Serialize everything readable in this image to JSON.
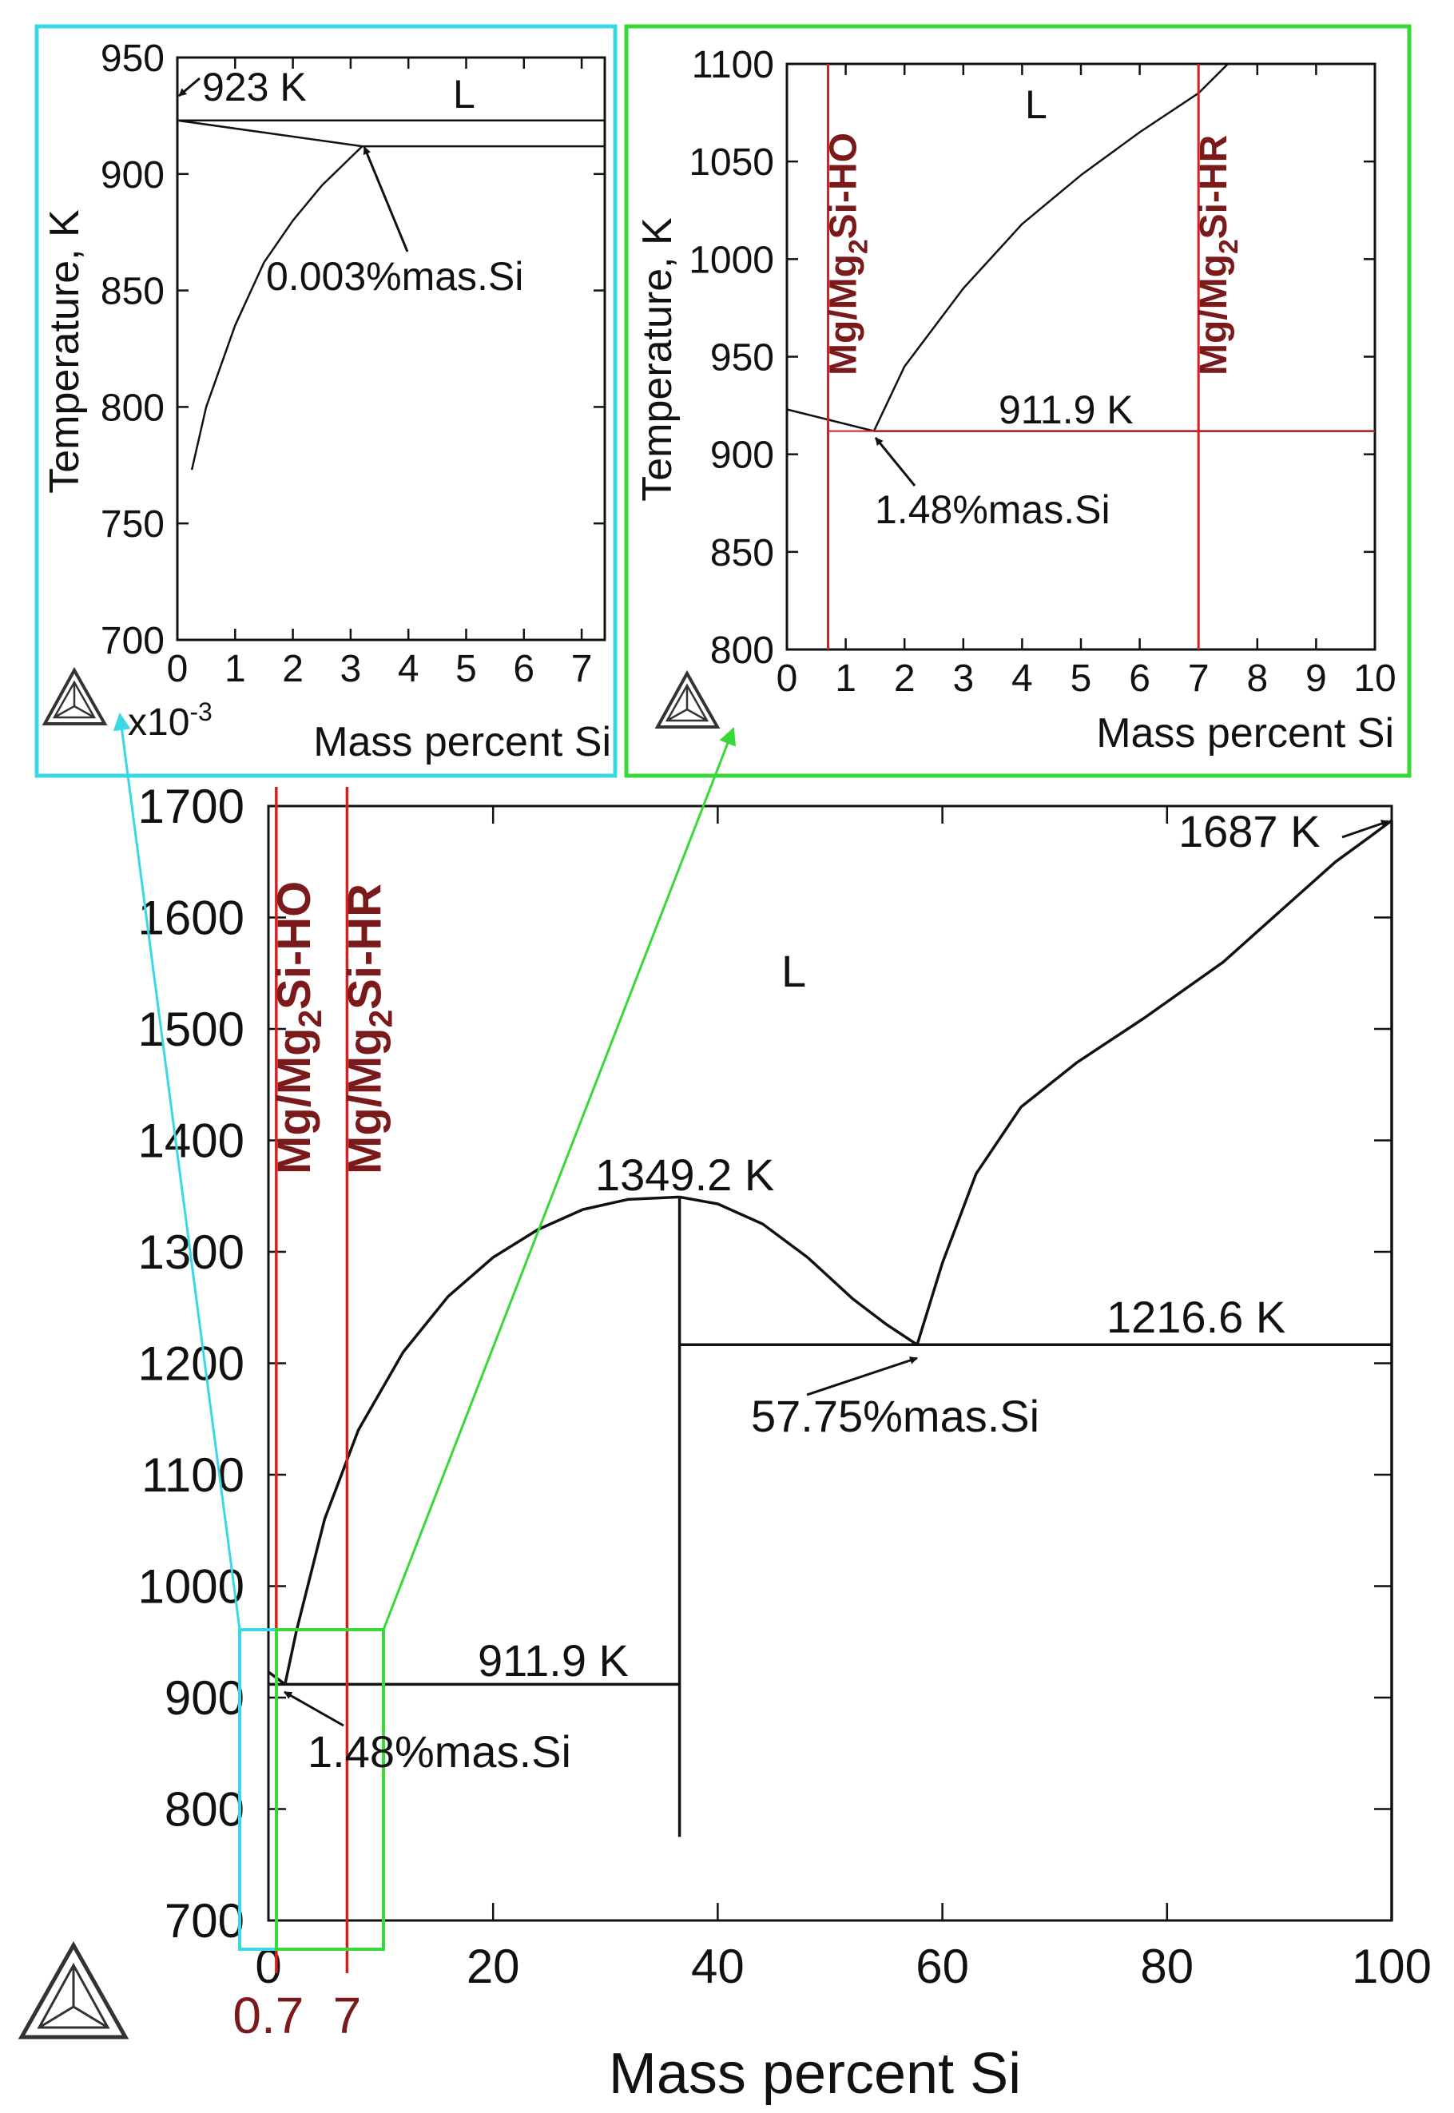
{
  "chart_data": [
    {
      "id": "main",
      "type": "line",
      "xlabel": "Mass percent Si",
      "xlim": [
        0,
        100
      ],
      "ylim": [
        700,
        1700
      ],
      "x_ticks": [
        0,
        20,
        40,
        60,
        80,
        100
      ],
      "y_ticks": [
        700,
        800,
        900,
        1000,
        1100,
        1200,
        1300,
        1400,
        1500,
        1600,
        1700
      ],
      "x_tick_labels": [
        "0",
        "20",
        "40",
        "60",
        "80",
        "100"
      ],
      "y_tick_labels": [
        "700",
        "800",
        "900",
        "1000",
        "1100",
        "1200",
        "1300",
        "1400",
        "1500",
        "1600",
        "1700"
      ],
      "series": [
        {
          "role": "liquidus-mg-side",
          "x": [
            1.48,
            2.5,
            5,
            8,
            12,
            16,
            20,
            24,
            28,
            32,
            36.6
          ],
          "y": [
            911.9,
            960,
            1060,
            1140,
            1210,
            1260,
            1295,
            1320,
            1338,
            1347,
            1349.2
          ]
        },
        {
          "role": "liquidus-mg2si-si-side",
          "x": [
            36.6,
            40,
            44,
            48,
            52,
            55,
            57.75
          ],
          "y": [
            1349.2,
            1343,
            1325,
            1295,
            1258,
            1235,
            1216.6
          ]
        },
        {
          "role": "liquidus-si-side",
          "x": [
            57.75,
            60,
            63,
            67,
            72,
            78,
            85,
            90,
            95,
            98,
            100
          ],
          "y": [
            1216.6,
            1290,
            1370,
            1430,
            1470,
            1510,
            1560,
            1605,
            1650,
            1672,
            1687
          ]
        },
        {
          "role": "mg-liquidus",
          "x": [
            0,
            1.48
          ],
          "y": [
            923,
            911.9
          ]
        },
        {
          "role": "eutectic-1",
          "x": [
            0,
            36.6
          ],
          "y": [
            911.9,
            911.9
          ]
        },
        {
          "role": "eutectic-2",
          "x": [
            36.6,
            100
          ],
          "y": [
            1216.6,
            1216.6
          ]
        },
        {
          "role": "mg2si-line",
          "x": [
            36.6,
            36.6
          ],
          "y": [
            775,
            1349.2
          ]
        },
        {
          "role": "si-line",
          "x": [
            100,
            100
          ],
          "y": [
            700,
            1687
          ]
        }
      ],
      "composition_lines": [
        {
          "x": 0.7,
          "label_parts": [
            "Mg/Mg",
            "2",
            "Si-HO"
          ],
          "axis_mark": "0.7"
        },
        {
          "x": 7,
          "label_parts": [
            "Mg/Mg",
            "2",
            "Si-HR"
          ],
          "axis_mark": "7"
        }
      ],
      "annotations": {
        "melting_si": "1687 K",
        "phase_L": "L",
        "congruent": "1349.2 K",
        "eutectic_high_T": "1216.6 K",
        "eutectic_high_comp": "57.75%mas.Si",
        "eutectic_low_T": "911.9 K",
        "eutectic_low_comp": "1.48%mas.Si"
      }
    },
    {
      "id": "inset-left",
      "type": "line",
      "xlabel": "Mass percent Si",
      "ylabel": "Temperature, K",
      "x_multiplier": "x10",
      "x_multiplier_exp": "-3",
      "xlim": [
        0,
        7.4
      ],
      "ylim": [
        700,
        950
      ],
      "x_ticks": [
        0,
        1,
        2,
        3,
        4,
        5,
        6,
        7
      ],
      "y_ticks": [
        700,
        750,
        800,
        850,
        900,
        950
      ],
      "x_tick_labels": [
        "0",
        "1",
        "2",
        "3",
        "4",
        "5",
        "6",
        "7"
      ],
      "y_tick_labels": [
        "700",
        "750",
        "800",
        "850",
        "900",
        "950"
      ],
      "series": [
        {
          "role": "liquidus",
          "x": [
            0.25,
            0.5,
            1,
            1.5,
            2,
            2.5,
            3.2
          ],
          "y": [
            773,
            800,
            835,
            862,
            880,
            895,
            911.9
          ]
        },
        {
          "role": "upper-line",
          "x": [
            0,
            7.4
          ],
          "y": [
            923,
            923
          ]
        },
        {
          "role": "mg-liquidus",
          "x": [
            0,
            3.2
          ],
          "y": [
            923,
            911.9
          ]
        },
        {
          "role": "eutectic",
          "x": [
            3.2,
            7.4
          ],
          "y": [
            911.9,
            911.9
          ]
        }
      ],
      "annotations": {
        "melting_mg": "923 K",
        "phase_L": "L",
        "composition": "0.003%mas.Si"
      }
    },
    {
      "id": "inset-right",
      "type": "line",
      "xlabel": "Mass percent Si",
      "ylabel": "Temperature, K",
      "xlim": [
        0,
        10
      ],
      "ylim": [
        800,
        1100
      ],
      "x_ticks": [
        0,
        1,
        2,
        3,
        4,
        5,
        6,
        7,
        8,
        9,
        10
      ],
      "y_ticks": [
        800,
        850,
        900,
        950,
        1000,
        1050,
        1100
      ],
      "x_tick_labels": [
        "0",
        "1",
        "2",
        "3",
        "4",
        "5",
        "6",
        "7",
        "8",
        "9",
        "10"
      ],
      "y_tick_labels": [
        "800",
        "850",
        "900",
        "950",
        "1000",
        "1050",
        "1100"
      ],
      "series": [
        {
          "role": "liquidus",
          "x": [
            1.48,
            2,
            3,
            4,
            5,
            6,
            7,
            7.5
          ],
          "y": [
            911.9,
            945,
            985,
            1018,
            1043,
            1065,
            1085,
            1100
          ]
        },
        {
          "role": "mg-liquidus",
          "x": [
            0,
            1.48
          ],
          "y": [
            923,
            911.9
          ]
        },
        {
          "role": "eutectic",
          "x": [
            1.48,
            10
          ],
          "y": [
            911.9,
            911.9
          ]
        }
      ],
      "composition_lines": [
        {
          "x": 0.7,
          "label_parts": [
            "Mg/Mg",
            "2",
            "Si-HO"
          ]
        },
        {
          "x": 7,
          "label_parts": [
            "Mg/Mg",
            "2",
            "Si-HR"
          ]
        }
      ],
      "annotations": {
        "phase_L": "L",
        "eutectic_T": "911.9 K",
        "eutectic_comp": "1.48%mas.Si"
      }
    }
  ],
  "colors": {
    "curve": "#111111",
    "composition_line": "#d42020",
    "composition_label": "#7b1a1a",
    "left_box": "#38d8e6",
    "right_box": "#38d838"
  }
}
